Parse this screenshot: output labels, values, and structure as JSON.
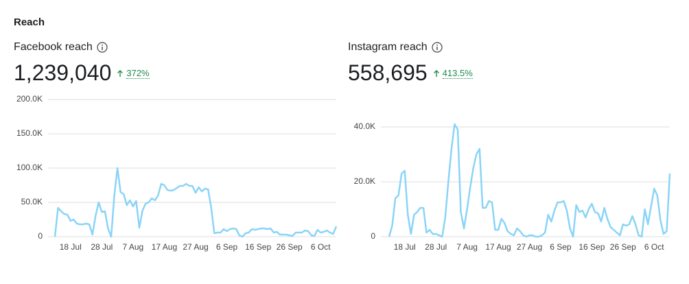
{
  "header": "Reach",
  "chart_data": [
    {
      "type": "line",
      "title": "Facebook reach",
      "total": "1,239,040",
      "change": "372%",
      "color": "#8ad4f7",
      "grid": true,
      "categories": [
        null,
        null,
        null,
        null,
        null,
        "18 Jul",
        null,
        null,
        null,
        null,
        null,
        null,
        null,
        null,
        null,
        "28 Jul",
        null,
        null,
        null,
        null,
        null,
        null,
        null,
        null,
        null,
        "7 Aug",
        null,
        null,
        null,
        null,
        null,
        null,
        null,
        null,
        null,
        "17 Aug",
        null,
        null,
        null,
        null,
        null,
        null,
        null,
        null,
        null,
        "27 Aug",
        null,
        null,
        null,
        null,
        null,
        null,
        null,
        null,
        null,
        "6 Sep",
        null,
        null,
        null,
        null,
        null,
        null,
        null,
        null,
        null,
        "16 Sep",
        null,
        null,
        null,
        null,
        null,
        null,
        null,
        null,
        null,
        "26 Sep",
        null,
        null,
        null,
        null,
        null,
        null,
        null,
        null,
        null,
        "6 Oct",
        null,
        null,
        null,
        null,
        null
      ],
      "values": [
        0,
        42000,
        37000,
        33000,
        32000,
        23000,
        25000,
        19000,
        18000,
        18000,
        19000,
        18000,
        3000,
        30000,
        50000,
        36000,
        37000,
        12000,
        0,
        60000,
        100000,
        65000,
        62000,
        46000,
        53000,
        44000,
        52000,
        13000,
        38000,
        48000,
        50000,
        56000,
        53000,
        60000,
        77000,
        75000,
        68000,
        67000,
        68000,
        71000,
        74000,
        74000,
        77000,
        74000,
        74000,
        64000,
        72000,
        66000,
        70000,
        69000,
        42000,
        5000,
        6000,
        6000,
        11000,
        8000,
        11000,
        12000,
        11000,
        2000,
        0,
        5000,
        6000,
        11000,
        10000,
        11000,
        12000,
        12000,
        11000,
        12000,
        6000,
        7000,
        3000,
        3000,
        3000,
        2000,
        1000,
        6000,
        6000,
        6000,
        9000,
        8000,
        2000,
        1000,
        10000,
        6000,
        7000,
        9000,
        6000,
        4000,
        15000
      ],
      "ylim": [
        0,
        200000
      ],
      "yticks": [
        0,
        {
          "value": 50000,
          "label": "50.0K"
        },
        {
          "value": 100000,
          "label": "100.0K"
        },
        {
          "value": 150000,
          "label": "150.0K"
        },
        {
          "value": 200000,
          "label": "200.0K"
        }
      ]
    },
    {
      "type": "line",
      "title": "Instagram reach",
      "total": "558,695",
      "change": "413.5%",
      "color": "#8ad4f7",
      "grid": true,
      "categories": [
        null,
        null,
        null,
        null,
        null,
        "18 Jul",
        null,
        null,
        null,
        null,
        null,
        null,
        null,
        null,
        null,
        "28 Jul",
        null,
        null,
        null,
        null,
        null,
        null,
        null,
        null,
        null,
        "7 Aug",
        null,
        null,
        null,
        null,
        null,
        null,
        null,
        null,
        null,
        "17 Aug",
        null,
        null,
        null,
        null,
        null,
        null,
        null,
        null,
        null,
        "27 Aug",
        null,
        null,
        null,
        null,
        null,
        null,
        null,
        null,
        null,
        "6 Sep",
        null,
        null,
        null,
        null,
        null,
        null,
        null,
        null,
        null,
        "16 Sep",
        null,
        null,
        null,
        null,
        null,
        null,
        null,
        null,
        null,
        "26 Sep",
        null,
        null,
        null,
        null,
        null,
        null,
        null,
        null,
        null,
        "6 Oct",
        null,
        null,
        null,
        null,
        null
      ],
      "values": [
        0,
        4000,
        14000,
        15000,
        23000,
        24000,
        8000,
        1000,
        8000,
        9000,
        10500,
        10500,
        1500,
        2500,
        1000,
        1000,
        500,
        0,
        7000,
        20000,
        32000,
        41000,
        39000,
        9000,
        3000,
        10000,
        18000,
        25000,
        30000,
        32000,
        10500,
        10500,
        13000,
        12500,
        2500,
        2500,
        6500,
        5000,
        2000,
        1000,
        500,
        3000,
        2000,
        500,
        0,
        500,
        500,
        0,
        0,
        500,
        1500,
        8000,
        5500,
        9500,
        12500,
        12500,
        13000,
        9500,
        3000,
        0,
        11500,
        9000,
        9500,
        7000,
        10000,
        12000,
        9000,
        8500,
        5500,
        10500,
        6500,
        3500,
        2500,
        1500,
        500,
        4500,
        4000,
        4500,
        7500,
        4500,
        500,
        0,
        10000,
        4500,
        11000,
        17500,
        15000,
        6000,
        1000,
        2000,
        23000
      ],
      "ylim": [
        0,
        50000
      ],
      "yticks": [
        0,
        {
          "value": 20000,
          "label": "20.0K"
        },
        {
          "value": 40000,
          "label": "40.0K"
        }
      ]
    }
  ]
}
